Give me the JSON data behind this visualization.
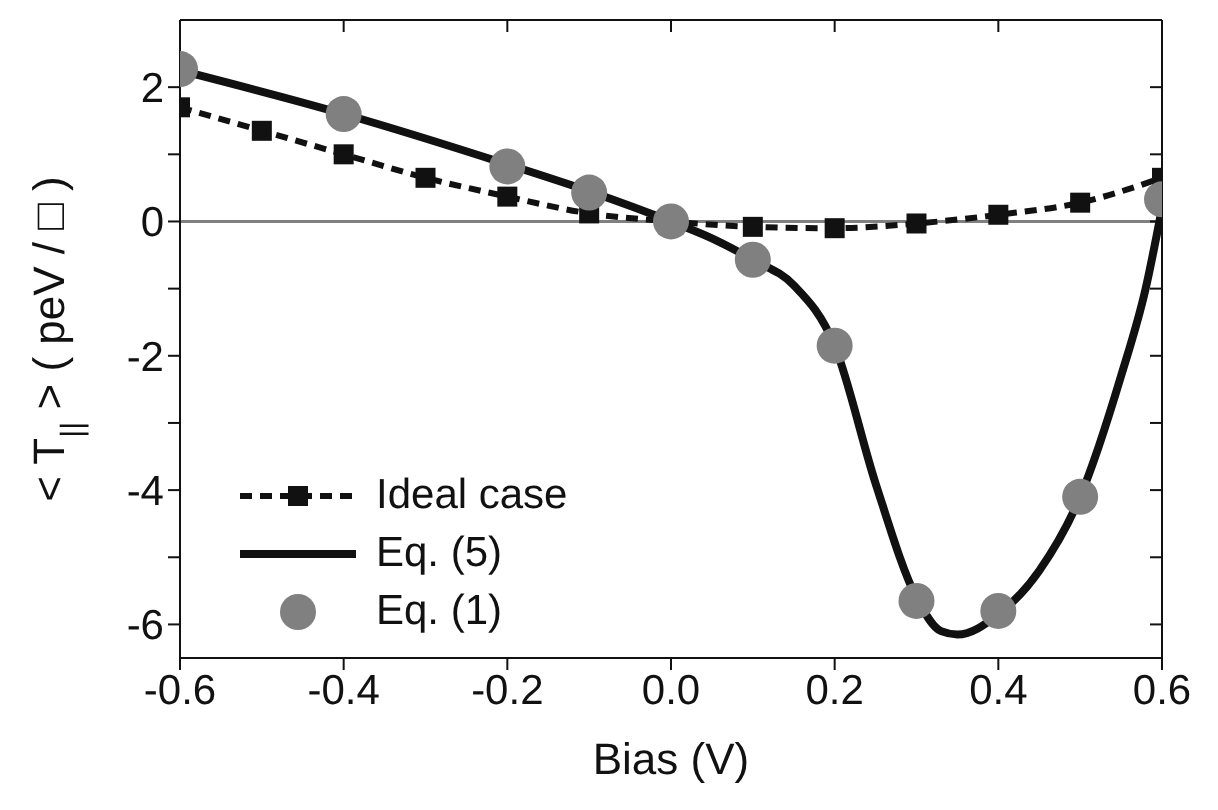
{
  "chart_data": {
    "type": "line",
    "xlabel": "Bias (V)",
    "ylabel": "< T$_{||}$ > ( peV / □ )",
    "xlim": [
      -0.6,
      0.6
    ],
    "xticks": [
      {
        "value": -0.6,
        "label": "-0.6"
      },
      {
        "value": -0.4,
        "label": "-0.4"
      },
      {
        "value": -0.2,
        "label": "-0.2"
      },
      {
        "value": 0,
        "label": "0.0"
      },
      {
        "value": 0.2,
        "label": "0.2"
      },
      {
        "value": 0.4,
        "label": "0.4"
      },
      {
        "value": 0.6,
        "label": "0.6"
      }
    ],
    "ylim": [
      -6.5,
      3
    ],
    "yticks": [
      -6,
      {
        "value": -5,
        "label": null
      },
      -4,
      {
        "value": -3,
        "label": null
      },
      -2,
      {
        "value": -1,
        "label": null
      },
      0,
      {
        "value": 1,
        "label": null
      },
      2
    ],
    "legend": "bottom left",
    "ref_lines": [
      {
        "axis": "y",
        "value": 0,
        "color": "#808080"
      }
    ],
    "series": [
      {
        "name": "Ideal case",
        "color": "#111111",
        "line_style": "dashed",
        "marker": "square",
        "x": [
          -0.6,
          -0.5,
          -0.4,
          -0.3,
          -0.2,
          -0.1,
          0.0,
          0.1,
          0.2,
          0.3,
          0.4,
          0.5,
          0.6
        ],
        "values": [
          1.7,
          1.35,
          1.0,
          0.65,
          0.37,
          0.12,
          0.0,
          -0.08,
          -0.1,
          -0.03,
          0.1,
          0.28,
          0.65
        ]
      },
      {
        "name": "Eq. (5)",
        "color": "#111111",
        "line_style": "solid",
        "marker": "none",
        "x": [
          -0.6,
          -0.4,
          -0.2,
          -0.1,
          0.0,
          0.05,
          0.1,
          0.15,
          0.2,
          0.25,
          0.3,
          0.33,
          0.35,
          0.4,
          0.45,
          0.5,
          0.55,
          0.58,
          0.6
        ],
        "values": [
          2.25,
          1.6,
          0.85,
          0.45,
          0.0,
          -0.25,
          -0.57,
          -0.95,
          -1.85,
          -3.9,
          -5.6,
          -6.1,
          -6.15,
          -5.85,
          -5.2,
          -4.1,
          -2.3,
          -1.0,
          0.2
        ]
      },
      {
        "name": "Eq. (1)",
        "type": "scatter",
        "color": "#808080",
        "marker": "circle",
        "x": [
          -0.6,
          -0.4,
          -0.2,
          -0.1,
          0.0,
          0.1,
          0.2,
          0.3,
          0.4,
          0.5,
          0.6
        ],
        "values": [
          2.27,
          1.6,
          0.82,
          0.43,
          0.0,
          -0.57,
          -1.85,
          -5.65,
          -5.8,
          -4.1,
          0.33
        ]
      }
    ]
  }
}
